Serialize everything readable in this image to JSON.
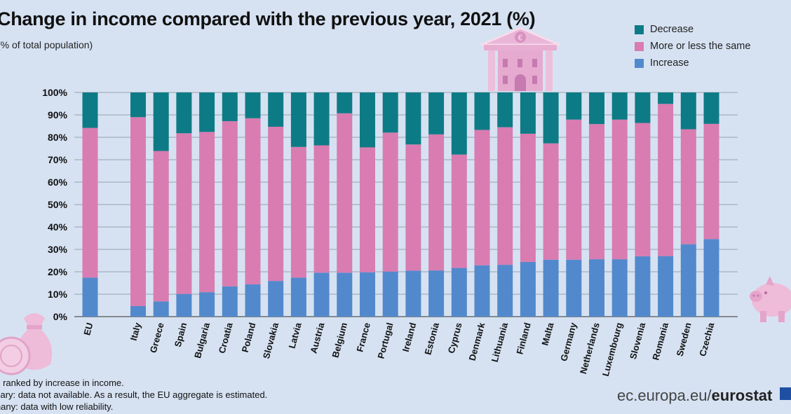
{
  "title": "Change in income compared with the previous year, 2021 (%)",
  "subtitle": "(% of total population)",
  "colors": {
    "decrease": "#0d7b85",
    "same": "#d97cb1",
    "increase": "#5289cc",
    "background": "#d6e2f2"
  },
  "icons": {
    "bank": "bank-euro-icon",
    "piggy": "piggy-bank-icon",
    "money_bag": "money-bag-icon",
    "coin": "euro-coin-icon"
  },
  "notes": [
    "te: ranked by increase in income.",
    "ngary: data not available. As a result, the EU aggregate is estimated.",
    "rmany: data with low reliability."
  ],
  "source": {
    "domain": "ec.europa.eu/",
    "brand": "eurostat"
  },
  "chart_data": {
    "type": "bar",
    "stacked": true,
    "categories": [
      "EU",
      "Italy",
      "Greece",
      "Spain",
      "Bulgaria",
      "Croatia",
      "Poland",
      "Slovakia",
      "Latvia",
      "Austria",
      "Belgium",
      "France",
      "Portugal",
      "Ireland",
      "Estonia",
      "Cyprus",
      "Denmark",
      "Lithuania",
      "Finland",
      "Malta",
      "Germany",
      "Netherlands",
      "Luxembourg",
      "Slovenia",
      "Romania",
      "Sweden",
      "Czechia"
    ],
    "series": [
      {
        "name": "Increase",
        "values": [
          17.4,
          4.7,
          6.8,
          10.1,
          10.9,
          13.5,
          14.4,
          15.9,
          17.4,
          19.6,
          19.6,
          19.8,
          20.1,
          20.5,
          20.6,
          21.7,
          22.9,
          23.1,
          24.4,
          25.4,
          25.4,
          25.6,
          25.6,
          26.9,
          27.0,
          32.3,
          34.6
        ]
      },
      {
        "name": "More or less the same",
        "values": [
          66.8,
          84.3,
          67.1,
          71.7,
          71.5,
          73.7,
          74.1,
          68.8,
          58.3,
          56.8,
          71.1,
          55.7,
          62.0,
          56.3,
          60.7,
          50.6,
          60.4,
          61.4,
          57.2,
          51.9,
          62.5,
          60.3,
          62.3,
          59.5,
          67.9,
          51.3,
          51.4
        ]
      },
      {
        "name": "Decrease",
        "values": [
          15.8,
          11.0,
          26.1,
          18.2,
          17.6,
          12.8,
          11.5,
          15.3,
          24.3,
          23.6,
          9.3,
          24.5,
          17.9,
          23.2,
          18.7,
          27.7,
          16.7,
          15.5,
          18.4,
          22.7,
          12.1,
          14.1,
          12.1,
          13.6,
          5.1,
          16.4,
          14.0
        ]
      }
    ],
    "y_tick_labels": [
      "0%",
      "10%",
      "20%",
      "30%",
      "40%",
      "50%",
      "60%",
      "70%",
      "80%",
      "90%",
      "100%"
    ],
    "ylim": [
      0,
      100
    ],
    "legend": "top-right",
    "legend_order": [
      "Decrease",
      "More or less the same",
      "Increase"
    ],
    "grid": true
  }
}
